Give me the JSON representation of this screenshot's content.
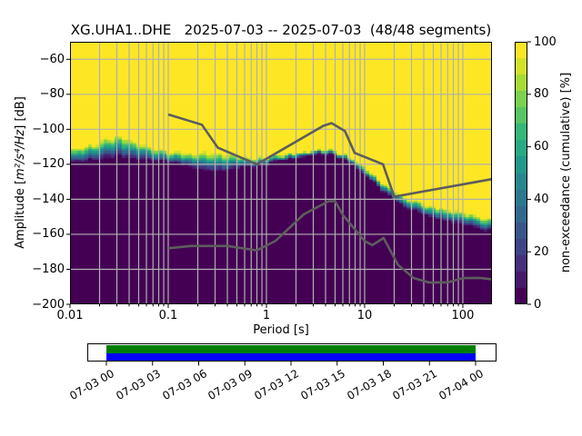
{
  "figure": {
    "title": "XG.UHA1..DHE   2025-07-03 -- 2025-07-03  (48/48 segments)",
    "background": "#ffffff"
  },
  "axes": {
    "xlabel": "Period [s]",
    "ylabel_prefix": "Amplitude [",
    "ylabel_math": "m²/s⁴/Hz",
    "ylabel_suffix": "] [dB]",
    "grid_color": "#b0b0b0",
    "xticks": [
      {
        "p": 0.01,
        "label": "0.01"
      },
      {
        "p": 0.1,
        "label": "0.1"
      },
      {
        "p": 1,
        "label": "1"
      },
      {
        "p": 10,
        "label": "10"
      },
      {
        "p": 100,
        "label": "100"
      }
    ],
    "yticks": [
      {
        "db": -60,
        "label": "−60"
      },
      {
        "db": -80,
        "label": "−80"
      },
      {
        "db": -100,
        "label": "−100"
      },
      {
        "db": -120,
        "label": "−120"
      },
      {
        "db": -140,
        "label": "−140"
      },
      {
        "db": -160,
        "label": "−160"
      },
      {
        "db": -180,
        "label": "−180"
      },
      {
        "db": -200,
        "label": "−200"
      }
    ]
  },
  "colorbar": {
    "label": "non-exceedance (cumulative) [%]",
    "ticks": [
      {
        "v": 0,
        "label": "0"
      },
      {
        "v": 20,
        "label": "20"
      },
      {
        "v": 40,
        "label": "40"
      },
      {
        "v": 60,
        "label": "60"
      },
      {
        "v": 80,
        "label": "80"
      },
      {
        "v": 100,
        "label": "100"
      }
    ]
  },
  "timeline": {
    "tick_labels": [
      "07-03 00",
      "07-03 03",
      "07-03 06",
      "07-03 09",
      "07-03 12",
      "07-03 15",
      "07-03 18",
      "07-03 21",
      "07-04 00"
    ],
    "coverage_top_color": "#007d00",
    "coverage_bottom_color": "#0000ff"
  },
  "chart_data": {
    "type": "heatmap",
    "title": "XG.UHA1..DHE   2025-07-03 -- 2025-07-03  (48/48 segments)",
    "station": "XG.UHA1..DHE",
    "date_range": "2025-07-03 -- 2025-07-03",
    "segments": "48/48",
    "xlabel": "Period [s]",
    "ylabel": "Amplitude [m²/s⁴/Hz] [dB]",
    "xscale": "log",
    "xlim": [
      0.01,
      198
    ],
    "ylim": [
      -200,
      -50
    ],
    "grid": true,
    "colorbar_label": "non-exceedance (cumulative) [%]",
    "color_range": [
      0,
      100
    ],
    "colormap": "viridis",
    "colormap_stops": [
      "#440154",
      "#482878",
      "#3e4a89",
      "#31688e",
      "#26828e",
      "#1f9e89",
      "#35b779",
      "#6ece58",
      "#b5de2b",
      "#fde725"
    ],
    "colormap_levels": 16,
    "db_bin_width": 1.25,
    "period_bins_per_octave": 8,
    "distribution": {
      "periods": [
        0.01,
        0.016,
        0.023,
        0.031,
        0.045,
        0.07,
        0.1,
        0.15,
        0.22,
        0.32,
        0.45,
        0.65,
        0.9,
        1.3,
        2.0,
        3.0,
        4.2,
        5.5,
        7.5,
        10,
        14,
        19,
        26,
        40,
        60,
        90,
        140,
        198
      ],
      "upper_db": [
        -111.5,
        -109.0,
        -105.5,
        -103.5,
        -107.0,
        -110.5,
        -112.5,
        -113.5,
        -113.5,
        -113.5,
        -114.5,
        -115.5,
        -116.5,
        -114.5,
        -113.0,
        -112.0,
        -111.5,
        -113.0,
        -116.5,
        -121.5,
        -128.0,
        -134.5,
        -139.0,
        -142.5,
        -145.0,
        -147.0,
        -149.5,
        -151.5
      ],
      "lower_db": [
        -120.0,
        -118.5,
        -117.0,
        -116.5,
        -117.5,
        -118.0,
        -119.0,
        -121.0,
        -124.0,
        -125.0,
        -123.5,
        -122.0,
        -121.5,
        -118.5,
        -116.5,
        -114.5,
        -114.0,
        -116.0,
        -120.5,
        -126.0,
        -133.5,
        -140.0,
        -145.0,
        -149.0,
        -152.0,
        -154.5,
        -157.0,
        -159.0
      ]
    },
    "noise_models": {
      "color": "#5d5d5d",
      "nhnm": {
        "periods": [
          0.1,
          0.22,
          0.32,
          0.8,
          3.8,
          4.6,
          6.3,
          7.9,
          15.4,
          20.0,
          198.0
        ],
        "db": [
          -91.5,
          -97.4,
          -110.5,
          -120.0,
          -98.0,
          -96.5,
          -101.0,
          -113.5,
          -120.0,
          -138.5,
          -128.5
        ]
      },
      "nlnm": {
        "periods": [
          0.1,
          0.17,
          0.4,
          0.8,
          1.24,
          2.4,
          4.3,
          5.0,
          6.0,
          10.0,
          12.0,
          15.6,
          21.9,
          31.6,
          45.0,
          70.0,
          101.0,
          154.0,
          198.0
        ],
        "db": [
          -168.0,
          -166.7,
          -166.7,
          -169.2,
          -163.7,
          -148.6,
          -141.1,
          -141.1,
          -149.0,
          -163.8,
          -166.2,
          -162.1,
          -177.5,
          -185.0,
          -187.5,
          -187.5,
          -185.0,
          -185.0,
          -185.8
        ]
      }
    }
  }
}
